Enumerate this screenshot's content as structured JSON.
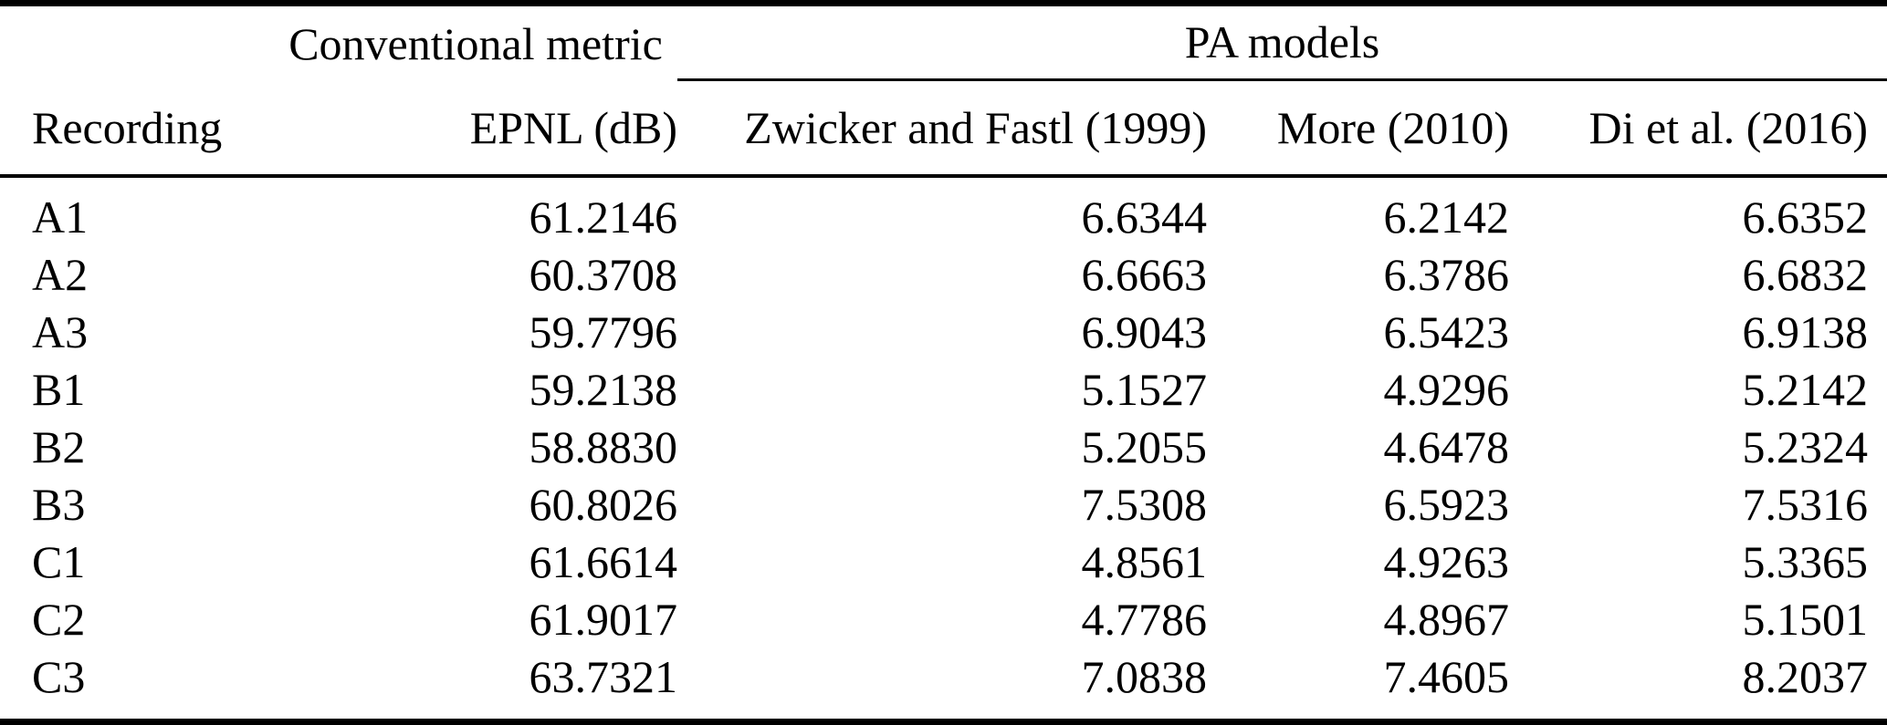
{
  "table": {
    "group_headers": {
      "conventional_metric": "Conventional metric",
      "pa_models": "PA models"
    },
    "columns": [
      "Recording",
      "EPNL (dB)",
      "Zwicker and Fastl (1999)",
      "More (2010)",
      "Di et al. (2016)"
    ],
    "rows": [
      [
        "A1",
        "61.2146",
        "6.6344",
        "6.2142",
        "6.6352"
      ],
      [
        "A2",
        "60.3708",
        "6.6663",
        "6.3786",
        "6.6832"
      ],
      [
        "A3",
        "59.7796",
        "6.9043",
        "6.5423",
        "6.9138"
      ],
      [
        "B1",
        "59.2138",
        "5.1527",
        "4.9296",
        "5.2142"
      ],
      [
        "B2",
        "58.8830",
        "5.2055",
        "4.6478",
        "5.2324"
      ],
      [
        "B3",
        "60.8026",
        "7.5308",
        "6.5923",
        "7.5316"
      ],
      [
        "C1",
        "61.6614",
        "4.8561",
        "4.9263",
        "5.3365"
      ],
      [
        "C2",
        "61.9017",
        "4.7786",
        "4.8967",
        "5.1501"
      ],
      [
        "C3",
        "63.7321",
        "7.0838",
        "7.4605",
        "8.2037"
      ]
    ]
  },
  "colors": {
    "text": "#000000",
    "background": "#ffffff",
    "rule": "#000000"
  }
}
